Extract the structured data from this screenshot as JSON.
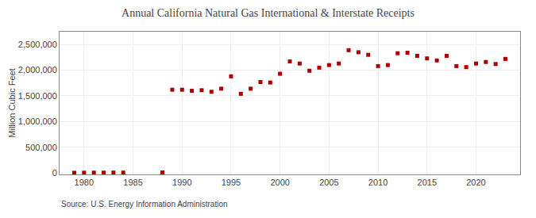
{
  "chart_data": {
    "type": "scatter",
    "title": "Annual California Natural Gas International & Interstate Receipts",
    "ylabel": "Million Cubic Feet",
    "annotations": [
      "Source: U.S. Energy Information Administration"
    ],
    "color": "#aa0000",
    "marker": "square",
    "grid": true,
    "xlim": [
      1977.5,
      2024.5
    ],
    "ylim": [
      -30000,
      2750000
    ],
    "xticks": [
      1980,
      1985,
      1990,
      1995,
      2000,
      2005,
      2010,
      2015,
      2020
    ],
    "yticks": [
      0,
      {
        "value": 500000,
        "label": "500,000"
      },
      {
        "value": 1000000,
        "label": "1,000,000"
      },
      {
        "value": 1500000,
        "label": "1,500,000"
      },
      {
        "value": 2000000,
        "label": "2,000,000"
      },
      {
        "value": 2500000,
        "label": "2,500,000"
      }
    ],
    "x": [
      1979,
      1980,
      1981,
      1982,
      1983,
      1984,
      1988,
      1989,
      1990,
      1991,
      1992,
      1993,
      1994,
      1995,
      1996,
      1997,
      1998,
      1999,
      2000,
      2001,
      2002,
      2003,
      2004,
      2005,
      2006,
      2007,
      2008,
      2009,
      2010,
      2011,
      2012,
      2013,
      2014,
      2015,
      2016,
      2017,
      2018,
      2019,
      2020,
      2021,
      2022,
      2023
    ],
    "values": [
      2000,
      3000,
      4000,
      4000,
      5000,
      5000,
      8000,
      1620000,
      1620000,
      1600000,
      1610000,
      1580000,
      1640000,
      1880000,
      1540000,
      1640000,
      1770000,
      1760000,
      1930000,
      2170000,
      2130000,
      1990000,
      2050000,
      2100000,
      2130000,
      2390000,
      2350000,
      2300000,
      2080000,
      2100000,
      2330000,
      2340000,
      2280000,
      2230000,
      2190000,
      2280000,
      2080000,
      2060000,
      2130000,
      2160000,
      2120000,
      2220000
    ]
  }
}
